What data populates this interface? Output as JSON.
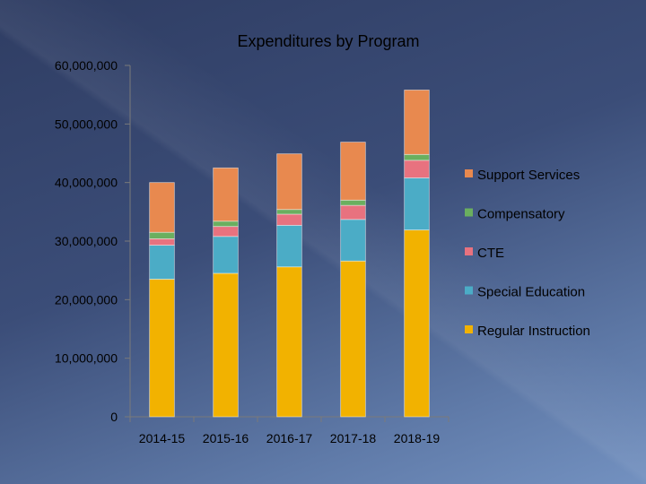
{
  "chart_data": {
    "type": "bar",
    "stacked": true,
    "title": "Expenditures by Program",
    "xlabel": "",
    "ylabel": "",
    "categories": [
      "2014-15",
      "2015-16",
      "2016-17",
      "2017-18",
      "2018-19"
    ],
    "ylim": [
      0,
      60000000
    ],
    "yticks": [
      0,
      10000000,
      20000000,
      30000000,
      40000000,
      50000000,
      60000000
    ],
    "ytick_labels": [
      "0",
      "10,000,000",
      "20,000,000",
      "30,000,000",
      "40,000,000",
      "50,000,000",
      "60,000,000"
    ],
    "grid": false,
    "legend": "right",
    "series": [
      {
        "name": "Regular Instruction",
        "color": "#f2b200",
        "values": [
          23500000,
          24500000,
          25600000,
          26600000,
          31900000
        ]
      },
      {
        "name": "Special Education",
        "color": "#4bacc6",
        "values": [
          5800000,
          6300000,
          7100000,
          7100000,
          8900000
        ]
      },
      {
        "name": "CTE",
        "color": "#e8727f",
        "values": [
          1100000,
          1700000,
          1900000,
          2400000,
          3000000
        ]
      },
      {
        "name": "Compensatory",
        "color": "#6aaf5f",
        "values": [
          1100000,
          900000,
          800000,
          900000,
          1000000
        ]
      },
      {
        "name": "Support Services",
        "color": "#e8894f",
        "values": [
          8500000,
          9100000,
          9500000,
          9900000,
          11000000
        ]
      }
    ]
  }
}
